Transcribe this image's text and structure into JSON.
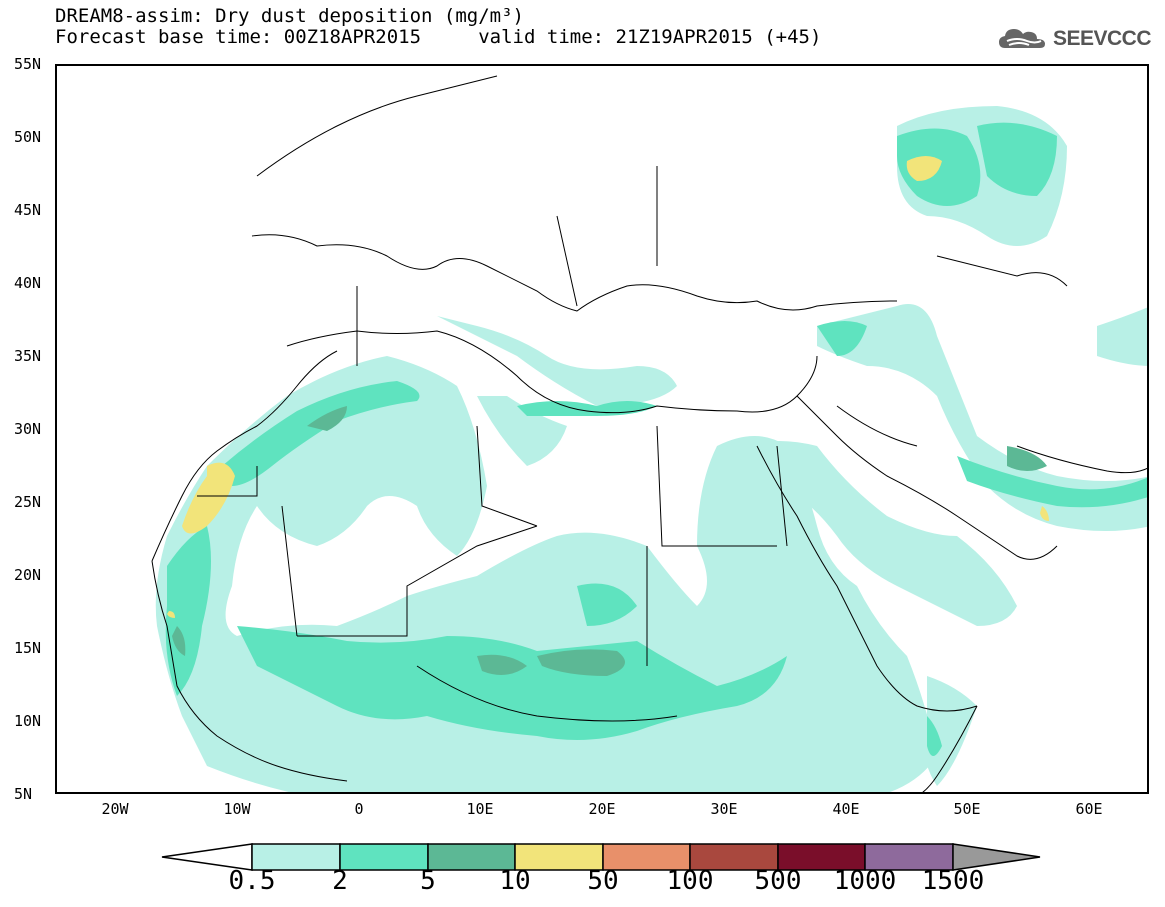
{
  "header": {
    "title_line1": "DREAM8-assim: Dry dust deposition (mg/m³)",
    "title_line2": "Forecast base time: 00Z18APR2015     valid time: 21Z19APR2015 (+45)"
  },
  "logo": {
    "text": "SEEVCCC",
    "icon": "cloud-logo-icon"
  },
  "axes": {
    "y_labels": [
      "55N",
      "50N",
      "45N",
      "40N",
      "35N",
      "30N",
      "25N",
      "20N",
      "15N",
      "10N",
      "5N"
    ],
    "x_labels": [
      "20W",
      "10W",
      "0",
      "10E",
      "20E",
      "30E",
      "40E",
      "50E",
      "60E"
    ]
  },
  "colorbar": {
    "labels": [
      "0.5",
      "2",
      "5",
      "10",
      "50",
      "100",
      "500",
      "1000",
      "1500"
    ],
    "colors": [
      "#b8f0e6",
      "#5fe3bf",
      "#5cb895",
      "#f2e47a",
      "#e8906a",
      "#a9483e",
      "#7a0e2a",
      "#8e6a9c",
      "#999999"
    ]
  },
  "map_colors": {
    "light": "#b8f0e6",
    "mid": "#5fe3bf",
    "dark": "#5cb895",
    "yellow": "#f2e47a"
  }
}
